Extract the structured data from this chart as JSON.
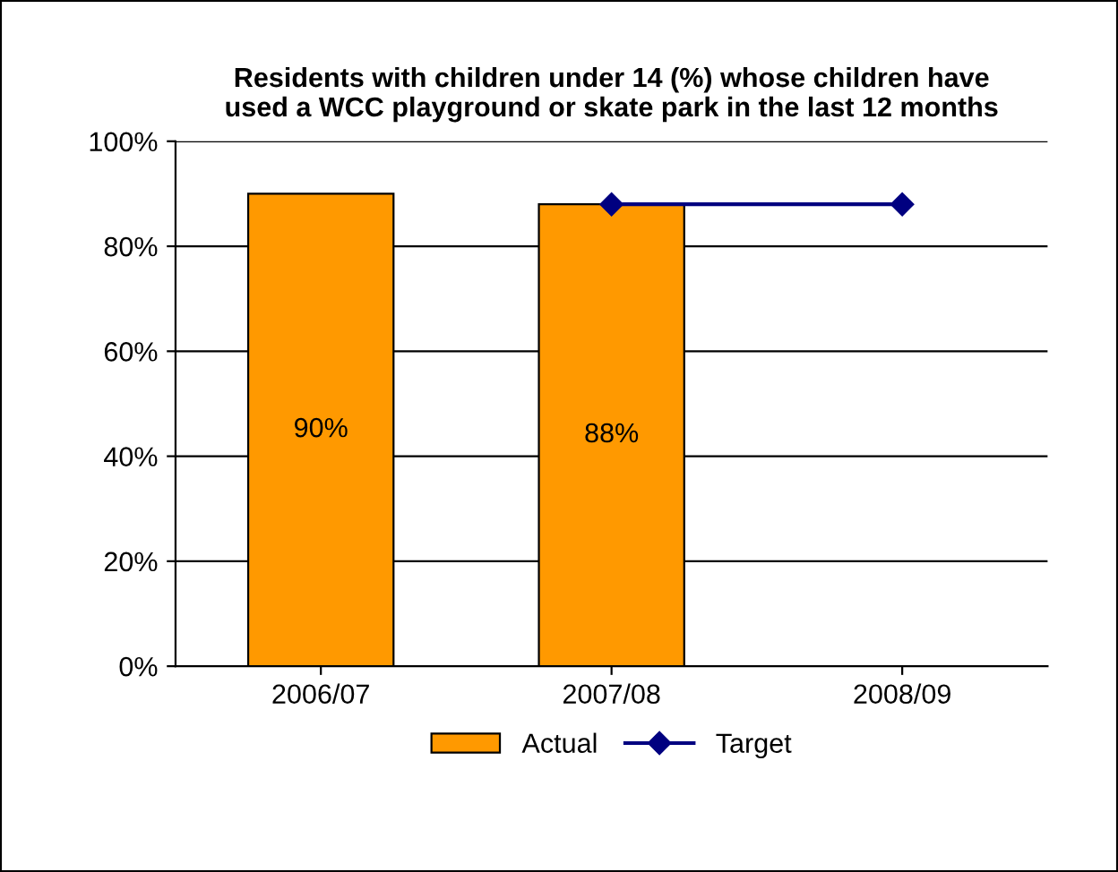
{
  "chart_data": {
    "type": "bar",
    "title": "Residents with children under 14 (%) whose children have\nused a WCC playground or skate park in the last 12 months",
    "categories": [
      "2006/07",
      "2007/08",
      "2008/09"
    ],
    "series": [
      {
        "name": "Actual",
        "color": "#ff9900",
        "values": [
          90,
          88,
          null
        ],
        "value_labels": [
          "90%",
          "88%",
          null
        ]
      },
      {
        "name": "Target",
        "type": "line",
        "color": "#000080",
        "values": [
          null,
          88,
          88
        ],
        "marker": "diamond",
        "line_style": "solid"
      }
    ],
    "ylim": [
      0,
      100
    ],
    "yticks": [
      {
        "value": 0,
        "label": "0%"
      },
      {
        "value": 20,
        "label": "20%"
      },
      {
        "value": 40,
        "label": "40%"
      },
      {
        "value": 60,
        "label": "60%"
      },
      {
        "value": 80,
        "label": "80%"
      },
      {
        "value": 100,
        "label": "100%"
      }
    ],
    "grid": "y",
    "legend": "bottom"
  }
}
